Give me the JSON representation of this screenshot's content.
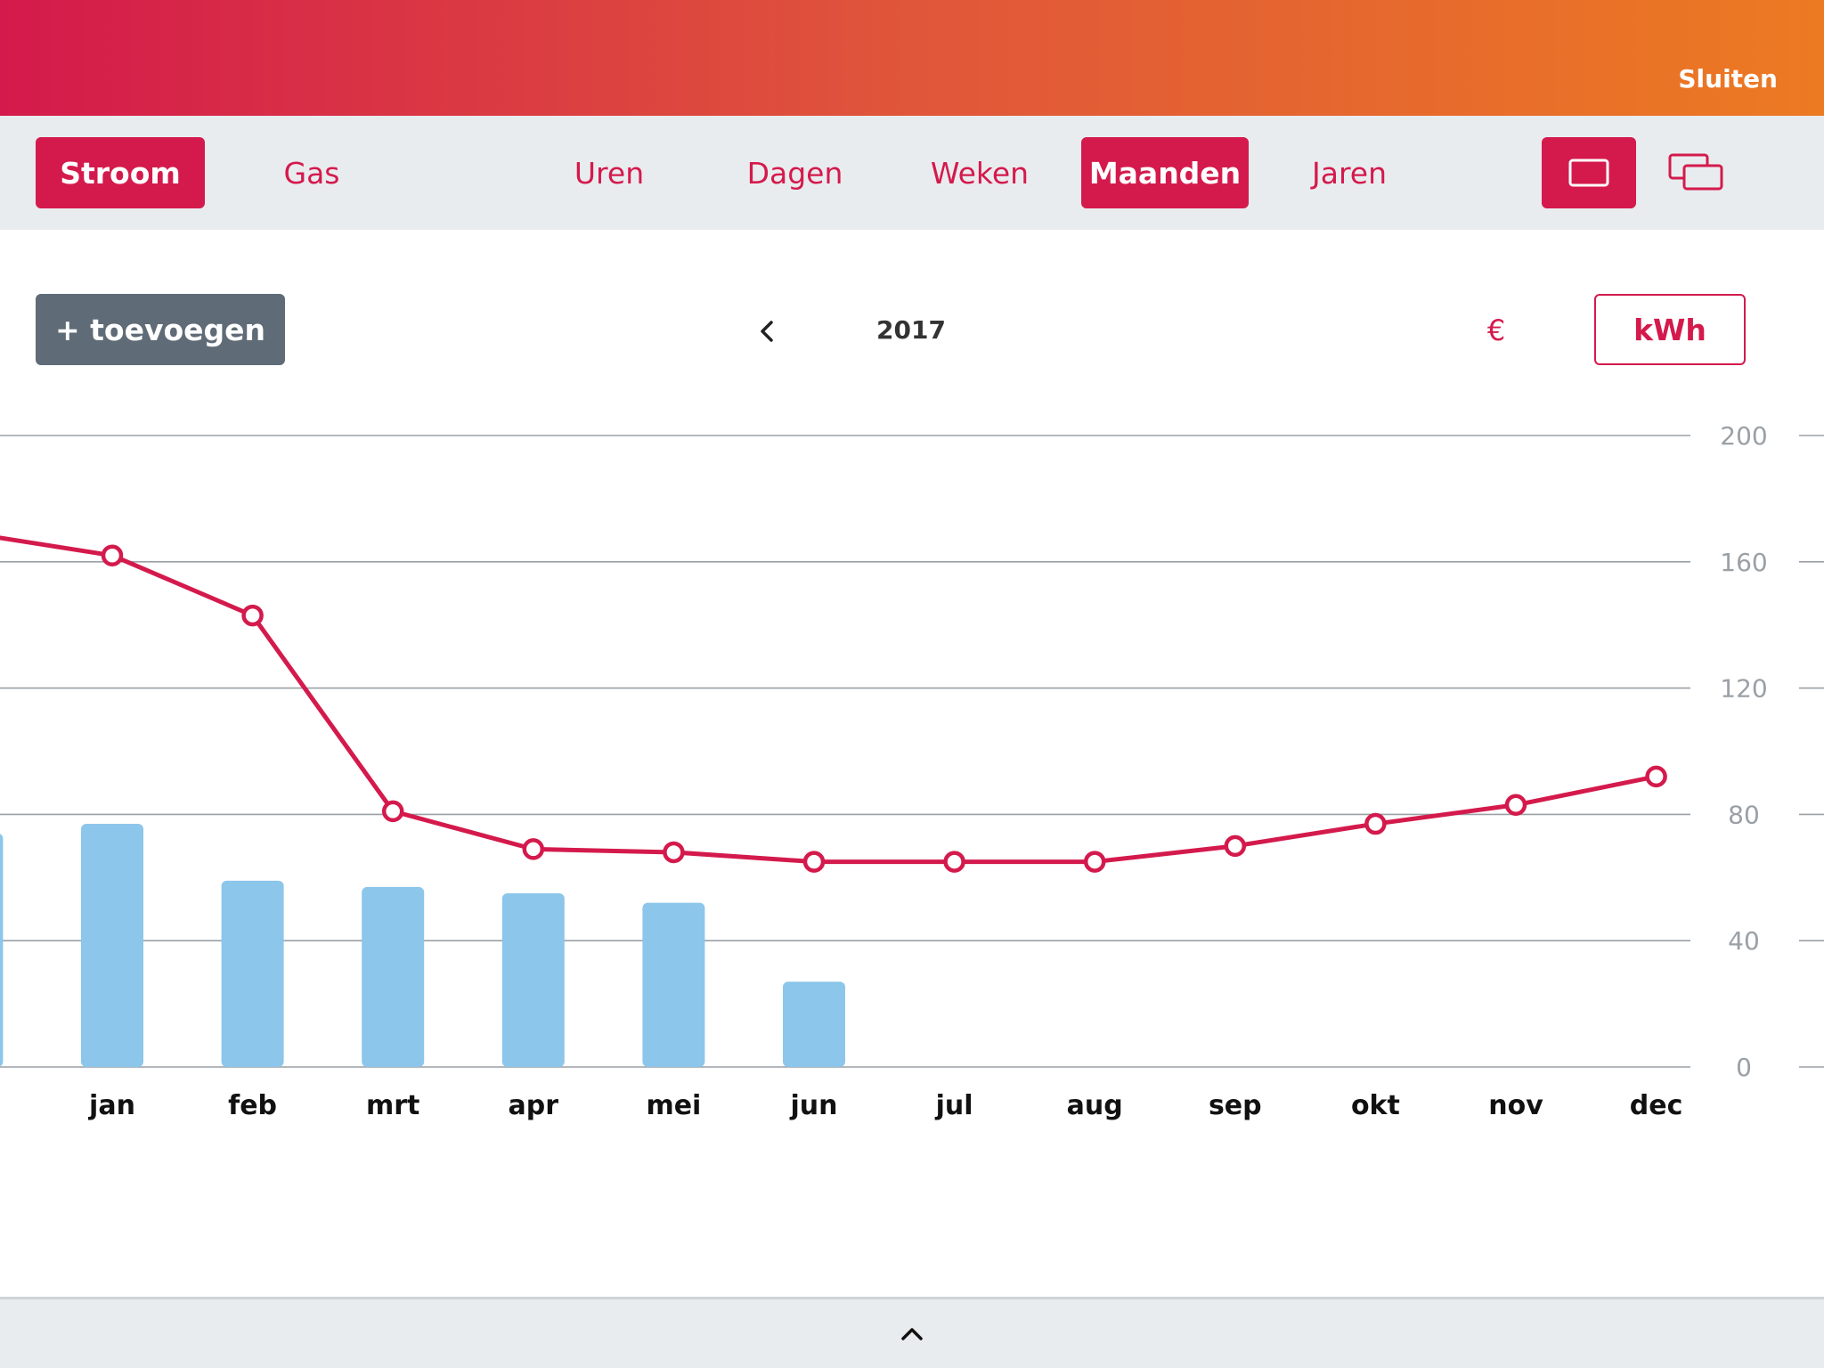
{
  "header": {
    "close_label": "Sluiten"
  },
  "energy_tabs": {
    "stroom": "Stroom",
    "gas": "Gas"
  },
  "period_tabs": {
    "uren": "Uren",
    "dagen": "Dagen",
    "weken": "Weken",
    "maanden": "Maanden",
    "jaren": "Jaren"
  },
  "view_toggle": {
    "single_icon": "single-view-icon",
    "compare_icon": "compare-view-icon"
  },
  "toolbar": {
    "add_label": "+ toevoegen",
    "year": "2017",
    "currency_label": "€",
    "unit_label": "kWh",
    "prev_icon": "chevron-left-icon"
  },
  "footer": {
    "expand_icon": "chevron-up-icon"
  },
  "colors": {
    "accent": "#d41a4c",
    "bar": "#8cc6ea",
    "grid": "#9aa0a6",
    "neutral_button": "#5f6b76"
  },
  "chart_data": {
    "type": "bar",
    "categories": [
      "jan",
      "feb",
      "mrt",
      "apr",
      "mei",
      "jun",
      "jul",
      "aug",
      "sep",
      "okt",
      "nov",
      "dec"
    ],
    "series": [
      {
        "type": "bar",
        "values": [
          77,
          59,
          57,
          55,
          52,
          27,
          null,
          null,
          null,
          null,
          null,
          null
        ],
        "previous_value": 74
      },
      {
        "type": "line",
        "values": [
          162,
          143,
          81,
          69,
          68,
          65,
          65,
          65,
          70,
          77,
          83,
          92
        ],
        "previous_value": 169
      }
    ],
    "yticks": [
      "0",
      "40",
      "80",
      "120",
      "160",
      "200"
    ],
    "ylim": [
      0,
      200
    ],
    "grid": true
  }
}
